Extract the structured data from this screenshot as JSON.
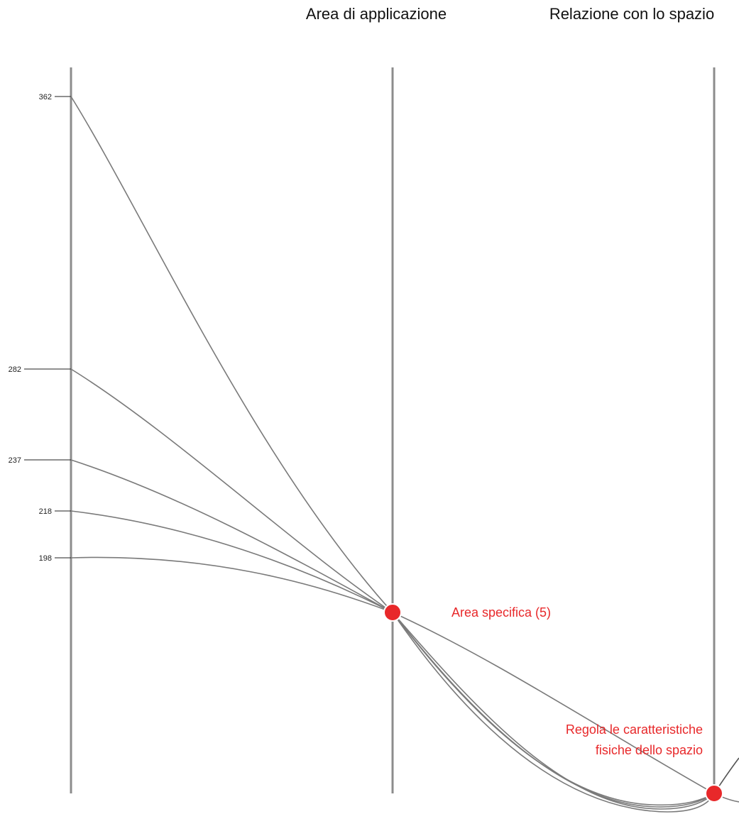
{
  "colors": {
    "axis": "#8c8c8c",
    "curve": "#7a7a7a",
    "highlight": "#e8282a",
    "text": "#111111"
  },
  "axes": [
    {
      "id": "left",
      "title": ""
    },
    {
      "id": "middle",
      "title": "Area di applicazione"
    },
    {
      "id": "right",
      "title": "Relazione con lo spazio"
    }
  ],
  "left_axis_ticks": [
    "362",
    "282",
    "237",
    "218",
    "198"
  ],
  "nodes": [
    {
      "id": "area-specifica",
      "lines": [
        "Area specifica (5)"
      ],
      "color": "#e8282a"
    },
    {
      "id": "regola-caratteristiche",
      "lines": [
        "Regola le caratteristiche",
        "fisiche dello spazio"
      ],
      "color": "#e8282a"
    }
  ]
}
